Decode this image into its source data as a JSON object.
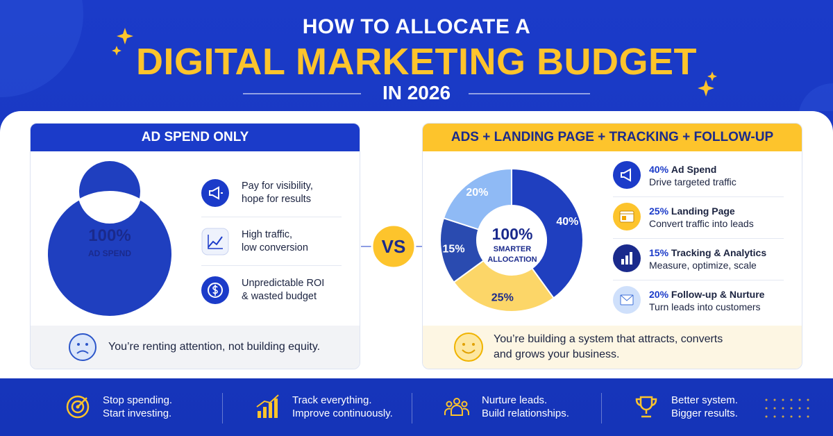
{
  "header": {
    "title_top": "HOW TO ALLOCATE A",
    "title_main": "DIGITAL MARKETING BUDGET",
    "title_year": "IN 2026"
  },
  "left": {
    "heading": "AD SPEND ONLY",
    "items": [
      [
        "Pay for visibility,",
        "hope for results"
      ],
      [
        "High traffic,",
        "low conversion"
      ],
      [
        "Unpredictable ROI",
        "& wasted budget"
      ]
    ],
    "footer": "You’re renting attention, not building equity."
  },
  "vs": "VS",
  "right": {
    "heading": "ADS + LANDING PAGE + TRACKING + FOLLOW-UP",
    "center_value": "100%",
    "center_label": [
      "SMARTER",
      "ALLOCATION"
    ],
    "items": [
      {
        "pct": "40%",
        "title": "Ad Spend",
        "text": "Drive targeted traffic"
      },
      {
        "pct": "25%",
        "title": "Landing Page",
        "text": "Convert traffic into leads"
      },
      {
        "pct": "15%",
        "title": "Tracking & Analytics",
        "text": "Measure, optimize, scale"
      },
      {
        "pct": "20%",
        "title": "Follow-up & Nurture",
        "text": "Turn leads into customers"
      }
    ],
    "footer": [
      "You’re building a system that attracts, converts",
      "and grows your business."
    ]
  },
  "chart_data": [
    {
      "type": "pie",
      "values": [
        100
      ],
      "value_labels": [
        "100%"
      ],
      "center_label": "AD SPEND",
      "colors": [
        "#1f3fbf"
      ]
    },
    {
      "type": "pie",
      "values": [
        40,
        25,
        15,
        20
      ],
      "value_labels": [
        "40%",
        "25%",
        "15%",
        "20%"
      ],
      "colors": [
        "#1f3fbf",
        "#fcd668",
        "#2a4bb0",
        "#8fbaf5"
      ]
    }
  ],
  "footer": {
    "items": [
      [
        "Stop spending.",
        "Start investing."
      ],
      [
        "Track everything.",
        "Improve continuously."
      ],
      [
        "Nurture leads.",
        "Build relationships."
      ],
      [
        "Better system.",
        "Bigger results."
      ]
    ]
  }
}
